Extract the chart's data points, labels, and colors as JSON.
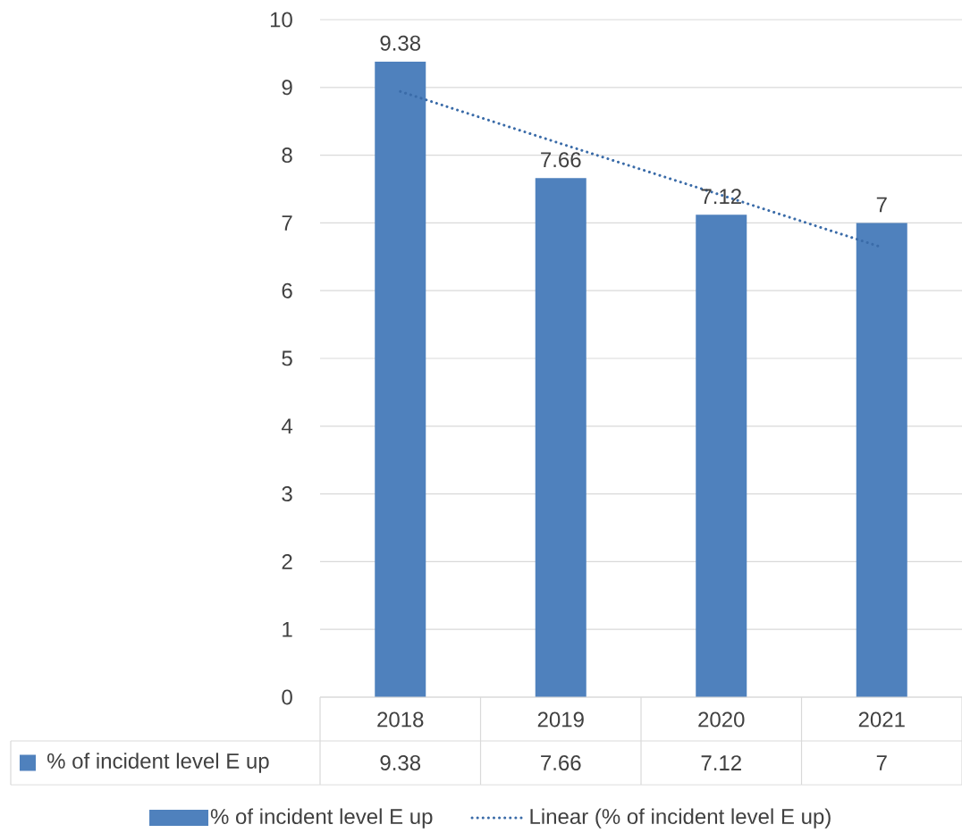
{
  "chart_data": {
    "type": "bar",
    "categories": [
      "2018",
      "2019",
      "2020",
      "2021"
    ],
    "series": [
      {
        "name": "% of incident level E up",
        "color": "#4f81bd",
        "values": [
          9.38,
          7.66,
          7.12,
          7
        ],
        "value_labels": [
          "9.38",
          "7.66",
          "7.12",
          "7"
        ]
      },
      {
        "name": "Linear (% of incident level E up)",
        "type": "line",
        "line_style": "dotted",
        "color": "#3a6ba8",
        "values": [
          8.94,
          8.17,
          7.41,
          6.64
        ]
      }
    ],
    "ylim": [
      0,
      10
    ],
    "yticks": [
      0,
      1,
      2,
      3,
      4,
      5,
      6,
      7,
      8,
      9,
      10
    ],
    "grid": "y",
    "legend": "bottom"
  }
}
